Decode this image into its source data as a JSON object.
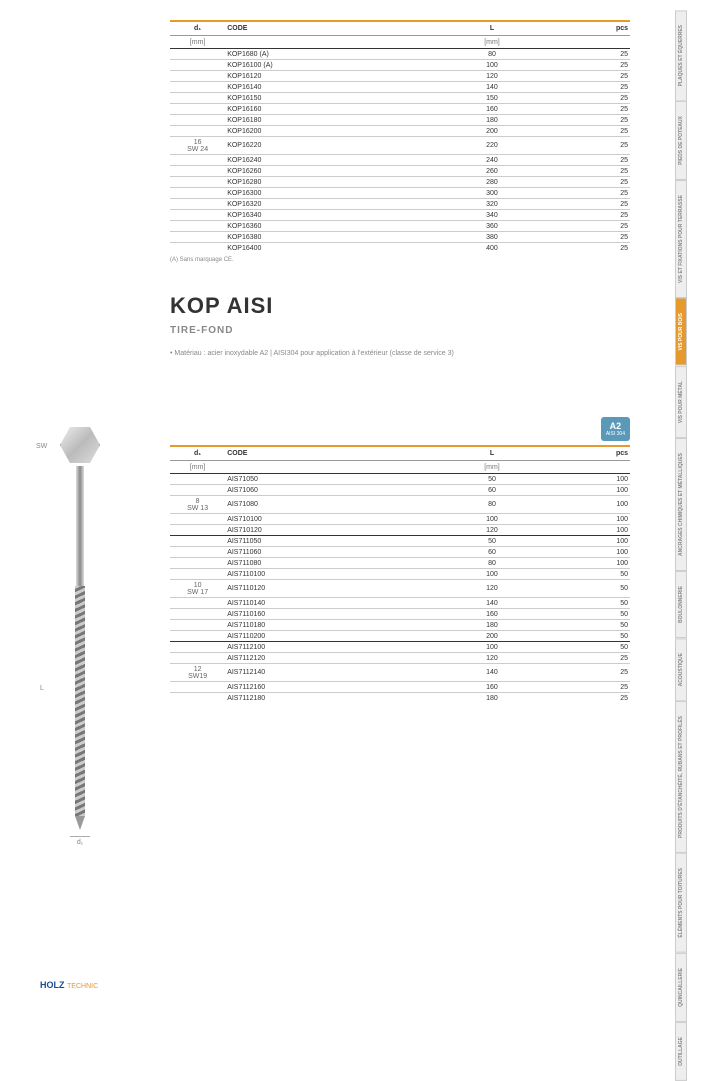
{
  "table1": {
    "headers": {
      "d1": "d₁",
      "code": "CODE",
      "l": "L",
      "pcs": "pcs"
    },
    "subheaders": {
      "d1": "[mm]",
      "l": "[mm]"
    },
    "group_label": "16\nSW 24",
    "rows": [
      {
        "code": "KOP1680 (A)",
        "l": "80",
        "pcs": "25"
      },
      {
        "code": "KOP16100 (A)",
        "l": "100",
        "pcs": "25"
      },
      {
        "code": "KOP16120",
        "l": "120",
        "pcs": "25"
      },
      {
        "code": "KOP16140",
        "l": "140",
        "pcs": "25"
      },
      {
        "code": "KOP16150",
        "l": "150",
        "pcs": "25"
      },
      {
        "code": "KOP16160",
        "l": "160",
        "pcs": "25"
      },
      {
        "code": "KOP16180",
        "l": "180",
        "pcs": "25"
      },
      {
        "code": "KOP16200",
        "l": "200",
        "pcs": "25"
      },
      {
        "code": "KOP16220",
        "l": "220",
        "pcs": "25"
      },
      {
        "code": "KOP16240",
        "l": "240",
        "pcs": "25"
      },
      {
        "code": "KOP16260",
        "l": "260",
        "pcs": "25"
      },
      {
        "code": "KOP16280",
        "l": "280",
        "pcs": "25"
      },
      {
        "code": "KOP16300",
        "l": "300",
        "pcs": "25"
      },
      {
        "code": "KOP16320",
        "l": "320",
        "pcs": "25"
      },
      {
        "code": "KOP16340",
        "l": "340",
        "pcs": "25"
      },
      {
        "code": "KOP16360",
        "l": "360",
        "pcs": "25"
      },
      {
        "code": "KOP16380",
        "l": "380",
        "pcs": "25"
      },
      {
        "code": "KOP16400",
        "l": "400",
        "pcs": "25"
      }
    ],
    "footnote": "(A) Sans marquage CE."
  },
  "product": {
    "title": "KOP AISI",
    "subtitle": "TIRE-FOND",
    "material_bullet": "• Matériau : acier inoxydable A2 | AISI304 pour application à l'extérieur (classe de service 3)",
    "badge": "A2",
    "badge_sub": "AISI 304",
    "sw_label": "SW",
    "d1_label": "d₁",
    "l_label": "L"
  },
  "table2": {
    "headers": {
      "d1": "d₁",
      "code": "CODE",
      "l": "L",
      "pcs": "pcs"
    },
    "subheaders": {
      "d1": "[mm]",
      "l": "[mm]"
    },
    "groups": [
      {
        "label": "8\nSW 13",
        "rows": [
          {
            "code": "AIS71050",
            "l": "50",
            "pcs": "100"
          },
          {
            "code": "AIS71060",
            "l": "60",
            "pcs": "100"
          },
          {
            "code": "AIS71080",
            "l": "80",
            "pcs": "100"
          },
          {
            "code": "AIS710100",
            "l": "100",
            "pcs": "100"
          },
          {
            "code": "AIS710120",
            "l": "120",
            "pcs": "100"
          }
        ]
      },
      {
        "label": "10\nSW 17",
        "rows": [
          {
            "code": "AIS711050",
            "l": "50",
            "pcs": "100"
          },
          {
            "code": "AIS711060",
            "l": "60",
            "pcs": "100"
          },
          {
            "code": "AIS711080",
            "l": "80",
            "pcs": "100"
          },
          {
            "code": "AIS7110100",
            "l": "100",
            "pcs": "50"
          },
          {
            "code": "AIS7110120",
            "l": "120",
            "pcs": "50"
          },
          {
            "code": "AIS7110140",
            "l": "140",
            "pcs": "50"
          },
          {
            "code": "AIS7110160",
            "l": "160",
            "pcs": "50"
          },
          {
            "code": "AIS7110180",
            "l": "180",
            "pcs": "50"
          },
          {
            "code": "AIS7110200",
            "l": "200",
            "pcs": "50"
          }
        ]
      },
      {
        "label": "12\nSW19",
        "rows": [
          {
            "code": "AIS7112100",
            "l": "100",
            "pcs": "50"
          },
          {
            "code": "AIS7112120",
            "l": "120",
            "pcs": "25"
          },
          {
            "code": "AIS7112140",
            "l": "140",
            "pcs": "25"
          },
          {
            "code": "AIS7112160",
            "l": "160",
            "pcs": "25"
          },
          {
            "code": "AIS7112180",
            "l": "180",
            "pcs": "25"
          }
        ]
      }
    ]
  },
  "sidebar": {
    "tabs": [
      {
        "label": "PLAQUES ET ÉQUERRES",
        "active": false
      },
      {
        "label": "PIEDS DE POTEAUX",
        "active": false
      },
      {
        "label": "VIS ET FIXATIONS POUR TERRASSE",
        "active": false
      },
      {
        "label": "VIS POUR BOIS",
        "active": true
      },
      {
        "label": "VIS POUR MÉTAL",
        "active": false
      },
      {
        "label": "ANCRAGES CHIMIQUES ET MÉTALLIQUES",
        "active": false
      },
      {
        "label": "BOULONNERIE",
        "active": false
      },
      {
        "label": "ACOUSTIQUE",
        "active": false
      },
      {
        "label": "PRODUITS D'ÉTANCHÉITÉ, RUBANS ET PROFILÉS",
        "active": false
      },
      {
        "label": "ÉLÉMENTS POUR TOITURES",
        "active": false
      },
      {
        "label": "QUINCAILLERIE",
        "active": false
      },
      {
        "label": "OUTILLAGE",
        "active": false
      }
    ]
  },
  "footer": {
    "brand1": "HOLZ",
    "brand2": "TECHNIC"
  },
  "colors": {
    "accent": "#e69a2e",
    "badge": "#5a99b8",
    "gray": "#eee"
  }
}
